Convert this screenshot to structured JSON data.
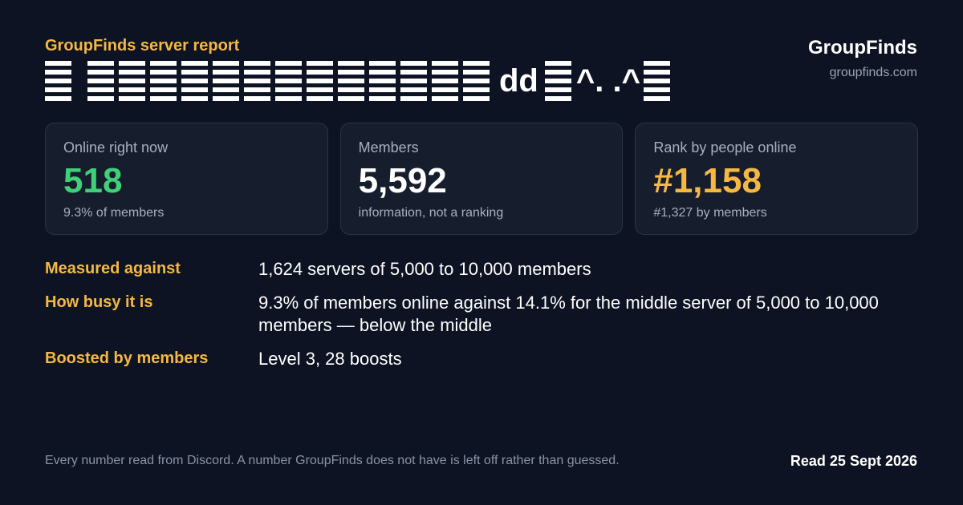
{
  "header": {
    "report_label": "GroupFinds server report",
    "name_text_middle": "dd",
    "name_text_tail": "^. .^"
  },
  "brand": {
    "name": "GroupFinds",
    "url": "groupfinds.com"
  },
  "cards": [
    {
      "label": "Online right now",
      "value": "518",
      "sub": "9.3% of members",
      "color": "#3fd07a"
    },
    {
      "label": "Members",
      "value": "5,592",
      "sub": "information, not a ranking",
      "color": "#ffffff"
    },
    {
      "label": "Rank by people online",
      "value": "#1,158",
      "sub": "#1,327 by members",
      "color": "#f5b843"
    }
  ],
  "details": [
    {
      "key": "Measured against",
      "value": "1,624 servers of 5,000 to 10,000 members"
    },
    {
      "key": "How busy it is",
      "value": "9.3% of members online against 14.1% for the middle server of 5,000 to 10,000 members — below the middle"
    },
    {
      "key": "Boosted by members",
      "value": "Level 3, 28 boosts"
    }
  ],
  "footer": {
    "note": "Every number read from Discord. A number GroupFinds does not have is left off rather than guessed.",
    "date": "Read 25 Sept 2026"
  },
  "colors": {
    "background": "#0d1322",
    "accent": "#f5b843",
    "online_green": "#3fd07a"
  }
}
